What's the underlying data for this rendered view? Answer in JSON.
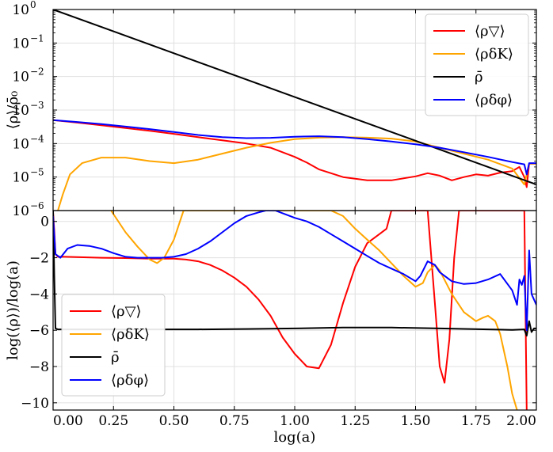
{
  "chart_data": [
    {
      "type": "line",
      "name": "top-panel",
      "ylabel": "⟨ρ⟩/ρ̄₀",
      "yscale": "log",
      "xlim": [
        0,
        2
      ],
      "ylim": [
        1e-06,
        1
      ],
      "grid": true,
      "legend_position": "top-right",
      "y_ticks": [
        {
          "value": 1.0,
          "base": "10",
          "exp": "0"
        },
        {
          "value": 0.1,
          "base": "10",
          "exp": "−1"
        },
        {
          "value": 0.01,
          "base": "10",
          "exp": "−2"
        },
        {
          "value": 0.001,
          "base": "10",
          "exp": "−3"
        },
        {
          "value": 0.0001,
          "base": "10",
          "exp": "−4"
        },
        {
          "value": 1e-05,
          "base": "10",
          "exp": "−5"
        },
        {
          "value": 1e-06,
          "base": "10",
          "exp": "−6"
        }
      ],
      "series": [
        {
          "name": "⟨ρ▽⟩",
          "color": "#ff0000",
          "x": [
            0.0,
            0.1,
            0.2,
            0.3,
            0.4,
            0.5,
            0.6,
            0.7,
            0.8,
            0.9,
            1.0,
            1.05,
            1.1,
            1.2,
            1.3,
            1.4,
            1.5,
            1.55,
            1.6,
            1.65,
            1.7,
            1.75,
            1.8,
            1.85,
            1.9,
            1.93,
            1.95,
            1.96,
            1.97,
            1.98,
            2.0
          ],
          "y": [
            0.0005,
            0.00042,
            0.00035,
            0.00029,
            0.00024,
            0.000195,
            0.000155,
            0.000125,
            0.0001,
            7.5e-05,
            4e-05,
            2.7e-05,
            1.7e-05,
            1e-05,
            8e-06,
            8e-06,
            1.05e-05,
            1.3e-05,
            1.1e-05,
            8e-06,
            1e-05,
            1.2e-05,
            1.1e-05,
            1.35e-05,
            1.5e-05,
            2e-05,
            1e-05,
            5e-06,
            2.5e-05,
            2.5e-05,
            2.5e-05
          ]
        },
        {
          "name": "⟨ρδK⟩",
          "color": "#ffa500",
          "x": [
            0.02,
            0.04,
            0.07,
            0.12,
            0.2,
            0.3,
            0.4,
            0.5,
            0.6,
            0.7,
            0.8,
            0.9,
            1.0,
            1.1,
            1.2,
            1.3,
            1.4,
            1.5,
            1.6,
            1.7,
            1.8,
            1.9,
            1.95,
            1.96,
            1.97,
            1.98,
            2.0
          ],
          "y": [
            1e-06,
            3e-06,
            1.2e-05,
            2.6e-05,
            3.8e-05,
            3.8e-05,
            3e-05,
            2.6e-05,
            3.3e-05,
            5e-05,
            7.5e-05,
            0.000105,
            0.000135,
            0.00015,
            0.000155,
            0.00015,
            0.00014,
            0.000115,
            7.5e-05,
            5e-05,
            3.3e-05,
            1.8e-05,
            6e-06,
            1.2e-05,
            2.5e-05,
            2.5e-05,
            2.5e-05
          ]
        },
        {
          "name": "ρ̄",
          "color": "#000000",
          "x": [
            0.0,
            2.0
          ],
          "y": [
            1.0,
            6e-06
          ]
        },
        {
          "name": "⟨ρδφ⟩",
          "color": "#0000ff",
          "x": [
            0.0,
            0.1,
            0.2,
            0.3,
            0.4,
            0.5,
            0.6,
            0.7,
            0.8,
            0.9,
            1.0,
            1.1,
            1.2,
            1.3,
            1.4,
            1.5,
            1.6,
            1.7,
            1.8,
            1.9,
            1.95,
            1.96,
            1.97,
            1.98,
            2.0
          ],
          "y": [
            0.0005,
            0.00044,
            0.00038,
            0.00032,
            0.00027,
            0.00022,
            0.00018,
            0.000155,
            0.000145,
            0.000148,
            0.00016,
            0.000165,
            0.000155,
            0.000135,
            0.000115,
            9.5e-05,
            7.5e-05,
            5.5e-05,
            4e-05,
            2.8e-05,
            2.4e-05,
            1.2e-05,
            2.6e-05,
            2.6e-05,
            2.6e-05
          ]
        }
      ]
    },
    {
      "type": "line",
      "name": "bottom-panel",
      "xlabel": "log(a)",
      "ylabel": "log(⟨ρ⟩)/log(a)",
      "xlim": [
        0,
        2
      ],
      "ylim": [
        -10.4,
        0.6
      ],
      "grid": true,
      "legend_position": "bottom-left",
      "x_ticks": [
        "0.00",
        "0.25",
        "0.50",
        "0.75",
        "1.00",
        "1.25",
        "1.50",
        "1.75",
        "2.00"
      ],
      "y_ticks": [
        "0",
        "−2",
        "−4",
        "−6",
        "−8",
        "−10"
      ],
      "series": [
        {
          "name": "⟨ρ▽⟩",
          "color": "#ff0000",
          "x": [
            0.0,
            0.005,
            0.01,
            0.02,
            0.05,
            0.2,
            0.3,
            0.4,
            0.5,
            0.55,
            0.6,
            0.65,
            0.7,
            0.75,
            0.8,
            0.85,
            0.9,
            0.95,
            1.0,
            1.05,
            1.1,
            1.15,
            1.2,
            1.25,
            1.3,
            1.35,
            1.38,
            1.4,
            1.45,
            1.5,
            1.55,
            1.58,
            1.6,
            1.62,
            1.64,
            1.66,
            1.68,
            1.7,
            1.72,
            1.75,
            1.8,
            1.85,
            1.9,
            1.93,
            1.95,
            1.96
          ],
          "y": [
            0.5,
            -0.5,
            -1.8,
            -1.95,
            -1.95,
            -2.0,
            -2.02,
            -2.05,
            -2.05,
            -2.1,
            -2.2,
            -2.4,
            -2.7,
            -3.1,
            -3.6,
            -4.3,
            -5.2,
            -6.4,
            -7.3,
            -8.0,
            -8.1,
            -6.8,
            -4.5,
            -2.5,
            -1.2,
            -0.7,
            -0.4,
            0.6,
            0.6,
            0.6,
            0.6,
            -4.5,
            -8.0,
            -8.9,
            -6.5,
            -2.0,
            0.6,
            0.6,
            0.6,
            0.6,
            0.6,
            0.6,
            0.6,
            0.6,
            0.6,
            -10.4
          ]
        },
        {
          "name": "⟨ρδK⟩",
          "color": "#ffa500",
          "x": [
            0.24,
            0.3,
            0.35,
            0.4,
            0.43,
            0.46,
            0.5,
            0.52,
            0.54,
            0.55,
            0.9,
            0.95,
            1.0,
            1.05,
            1.1,
            1.15,
            1.2,
            1.25,
            1.3,
            1.35,
            1.4,
            1.45,
            1.5,
            1.53,
            1.55,
            1.58,
            1.6,
            1.65,
            1.7,
            1.75,
            1.78,
            1.8,
            1.83,
            1.85,
            1.88,
            1.9,
            1.92
          ],
          "y": [
            0.6,
            -0.6,
            -1.4,
            -2.1,
            -2.3,
            -2.0,
            -1.0,
            -0.2,
            0.6,
            0.6,
            0.6,
            0.6,
            0.6,
            0.6,
            0.6,
            0.6,
            0.3,
            -0.4,
            -1.0,
            -1.6,
            -2.3,
            -3.0,
            -3.6,
            -3.4,
            -2.8,
            -2.4,
            -2.7,
            -4.0,
            -5.0,
            -5.5,
            -5.3,
            -5.2,
            -5.5,
            -6.2,
            -8.0,
            -9.5,
            -10.4
          ]
        },
        {
          "name": "ρ̄",
          "color": "#000000",
          "x": [
            0.0,
            0.005,
            0.01,
            0.02,
            0.05,
            0.2,
            0.4,
            0.6,
            0.8,
            1.0,
            1.2,
            1.4,
            1.6,
            1.8,
            1.9,
            1.95,
            1.96,
            1.97,
            1.98,
            1.99,
            2.0
          ],
          "y": [
            0.6,
            -3.0,
            -5.9,
            -5.95,
            -5.95,
            -5.95,
            -5.95,
            -5.95,
            -5.93,
            -5.9,
            -5.85,
            -5.85,
            -5.9,
            -5.95,
            -5.98,
            -5.95,
            -6.3,
            -5.5,
            -6.1,
            -5.9,
            -5.9
          ]
        },
        {
          "name": "⟨ρδφ⟩",
          "color": "#0000ff",
          "x": [
            0.0,
            0.01,
            0.03,
            0.06,
            0.1,
            0.15,
            0.2,
            0.25,
            0.3,
            0.35,
            0.4,
            0.45,
            0.5,
            0.55,
            0.6,
            0.65,
            0.7,
            0.75,
            0.8,
            0.85,
            0.88,
            0.92,
            0.96,
            1.0,
            1.05,
            1.1,
            1.15,
            1.2,
            1.25,
            1.3,
            1.35,
            1.4,
            1.45,
            1.5,
            1.52,
            1.55,
            1.58,
            1.6,
            1.65,
            1.7,
            1.75,
            1.8,
            1.85,
            1.9,
            1.92,
            1.93,
            1.94,
            1.95,
            1.96,
            1.97,
            1.98,
            2.0
          ],
          "y": [
            0.3,
            -1.8,
            -2.0,
            -1.5,
            -1.3,
            -1.35,
            -1.5,
            -1.75,
            -1.95,
            -2.0,
            -2.0,
            -2.0,
            -1.95,
            -1.8,
            -1.5,
            -1.1,
            -0.6,
            -0.1,
            0.3,
            0.5,
            0.6,
            0.6,
            0.4,
            0.2,
            0.0,
            -0.3,
            -0.7,
            -1.1,
            -1.5,
            -1.9,
            -2.3,
            -2.6,
            -2.9,
            -3.3,
            -3.0,
            -2.2,
            -2.4,
            -2.8,
            -3.3,
            -3.45,
            -3.4,
            -3.2,
            -2.9,
            -3.8,
            -4.6,
            -3.2,
            -3.5,
            -3.0,
            -6.0,
            -1.6,
            -4.0,
            -4.6
          ]
        }
      ]
    }
  ]
}
